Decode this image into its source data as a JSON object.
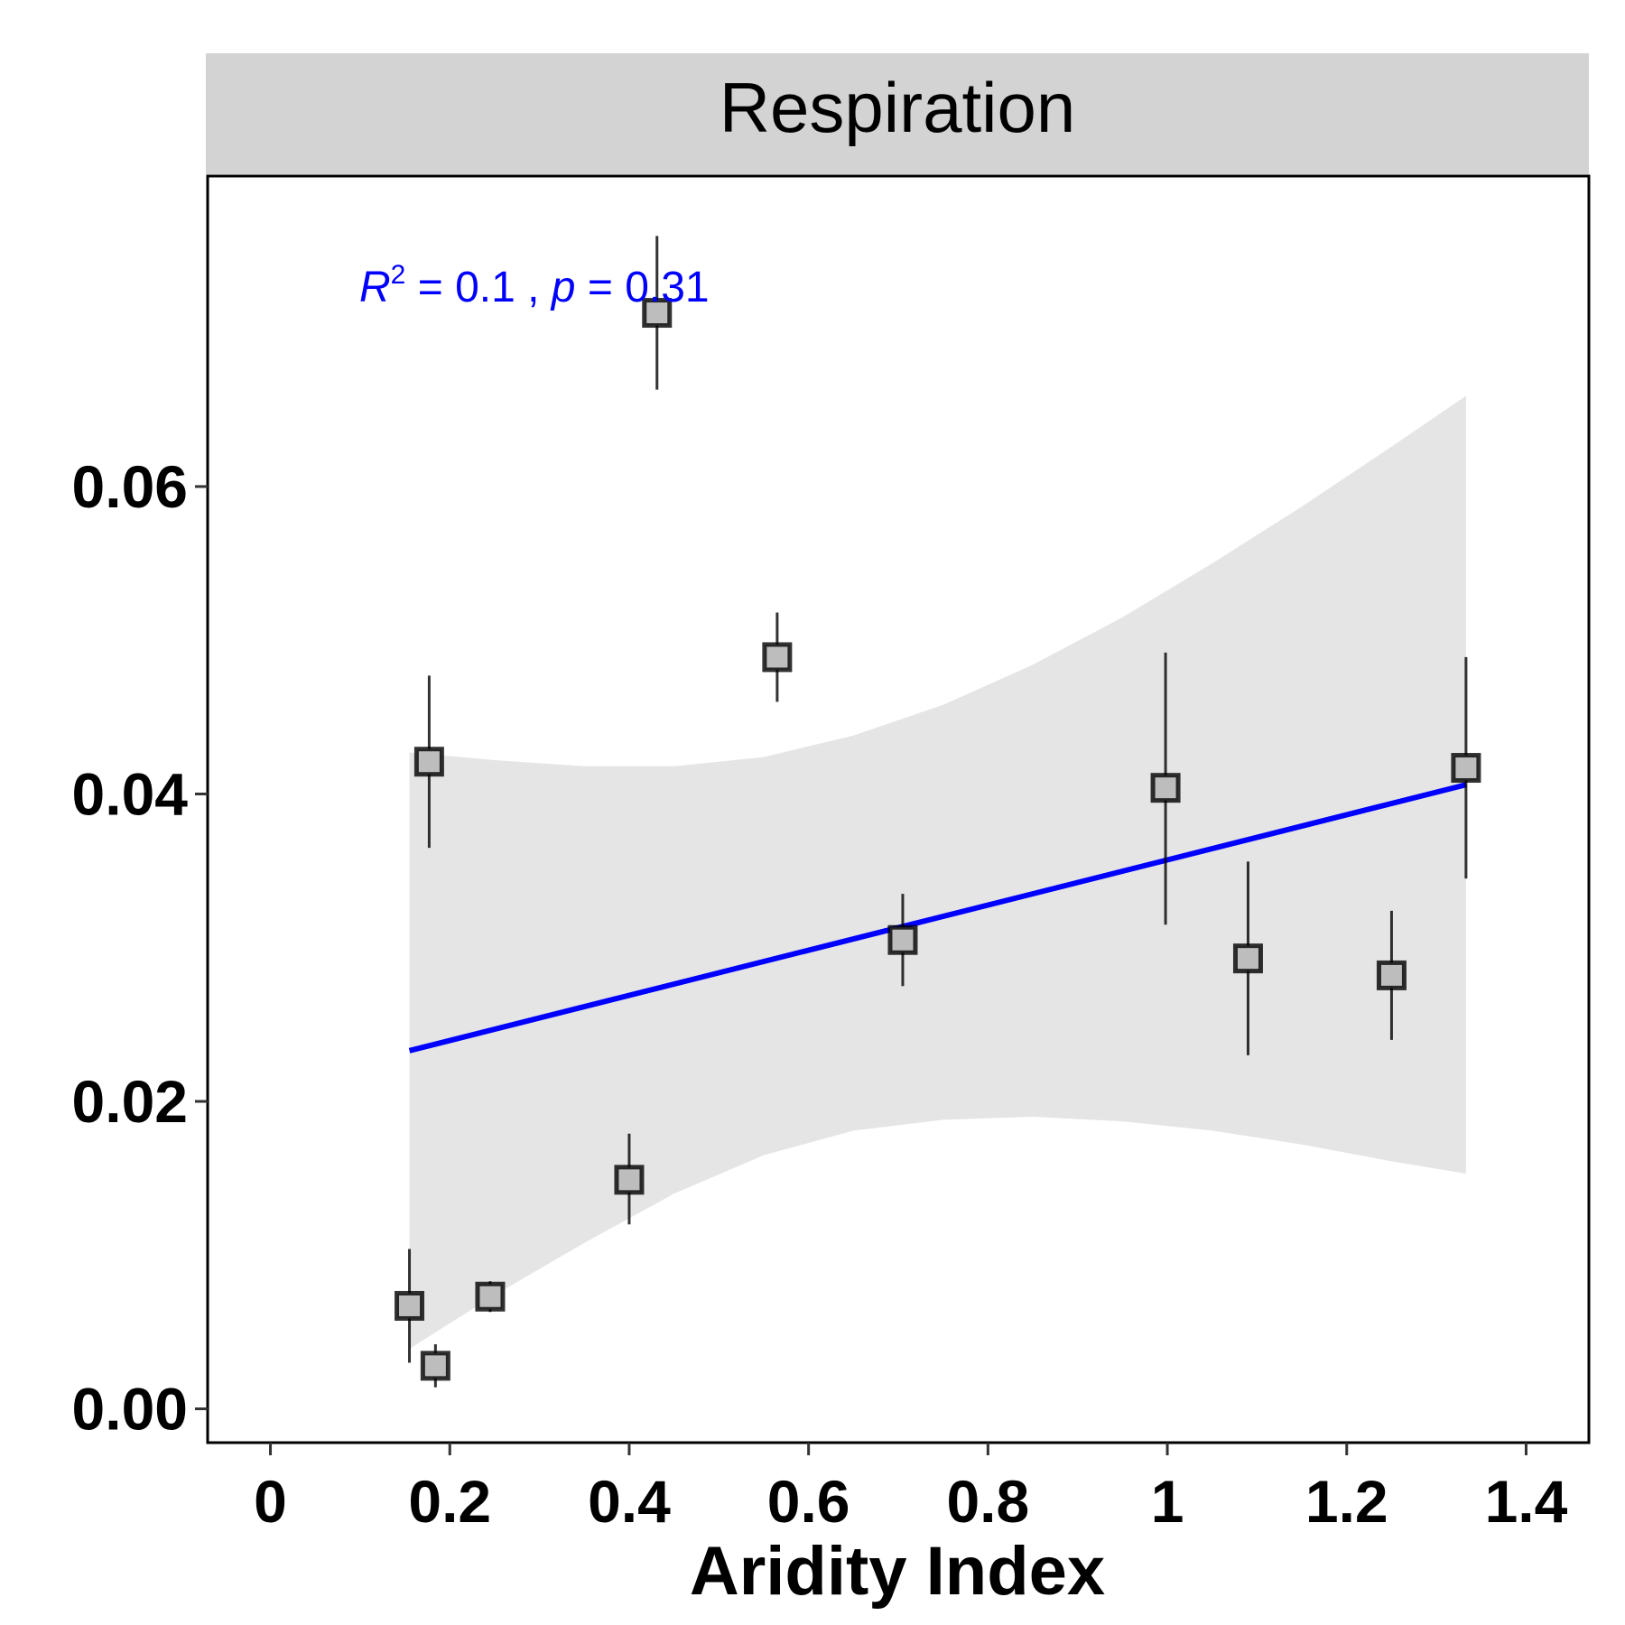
{
  "chart_data": {
    "type": "scatter",
    "panel_title": "Respiration",
    "xlabel": "Aridity Index",
    "ylabel": "",
    "xlim": [
      -0.07,
      1.47
    ],
    "ylim": [
      -0.0022,
      0.0802
    ],
    "x_ticks": [
      0,
      0.2,
      0.4,
      0.6,
      0.8,
      1,
      1.2,
      1.4
    ],
    "x_tick_labels": [
      "0",
      "0.2",
      "0.4",
      "0.6",
      "0.8",
      "1",
      "1.2",
      "1.4"
    ],
    "y_ticks": [
      0.0,
      0.02,
      0.04,
      0.06
    ],
    "y_tick_labels": [
      "0.00",
      "0.02",
      "0.04",
      "0.06"
    ],
    "grid": false,
    "points": [
      {
        "x": 0.155,
        "y": 0.0067,
        "ymin": 0.003,
        "ymax": 0.0104
      },
      {
        "x": 0.177,
        "y": 0.0421,
        "ymin": 0.0365,
        "ymax": 0.0477
      },
      {
        "x": 0.184,
        "y": 0.0028,
        "ymin": 0.0014,
        "ymax": 0.0042
      },
      {
        "x": 0.245,
        "y": 0.0073,
        "ymin": 0.0063,
        "ymax": 0.0083
      },
      {
        "x": 0.4,
        "y": 0.0149,
        "ymin": 0.012,
        "ymax": 0.0179
      },
      {
        "x": 0.431,
        "y": 0.0713,
        "ymin": 0.0663,
        "ymax": 0.0763
      },
      {
        "x": 0.565,
        "y": 0.0489,
        "ymin": 0.046,
        "ymax": 0.0518
      },
      {
        "x": 0.705,
        "y": 0.0305,
        "ymin": 0.0275,
        "ymax": 0.0335
      },
      {
        "x": 0.998,
        "y": 0.0404,
        "ymin": 0.0315,
        "ymax": 0.0492
      },
      {
        "x": 1.09,
        "y": 0.0293,
        "ymin": 0.023,
        "ymax": 0.0356
      },
      {
        "x": 1.25,
        "y": 0.0282,
        "ymin": 0.024,
        "ymax": 0.0324
      },
      {
        "x": 1.333,
        "y": 0.0417,
        "ymin": 0.0345,
        "ymax": 0.0489
      }
    ],
    "fit_line": {
      "x": [
        0.155,
        1.333
      ],
      "y": [
        0.0233,
        0.0406
      ],
      "color": "#0000ff"
    },
    "confidence_band": {
      "x": [
        0.155,
        0.25,
        0.35,
        0.45,
        0.55,
        0.65,
        0.75,
        0.85,
        0.95,
        1.05,
        1.15,
        1.25,
        1.333
      ],
      "upper": [
        0.0427,
        0.0422,
        0.0418,
        0.0418,
        0.0424,
        0.0438,
        0.0458,
        0.0484,
        0.0515,
        0.055,
        0.0587,
        0.0626,
        0.0659
      ],
      "lower": [
        0.0039,
        0.0074,
        0.0108,
        0.014,
        0.0165,
        0.0181,
        0.0188,
        0.019,
        0.0187,
        0.0181,
        0.0172,
        0.0161,
        0.0153
      ],
      "color": "#e5e5e5"
    },
    "annotation": {
      "r_symbol": "R",
      "r_superscript": "2",
      "r_value": " = 0.1 , ",
      "p_symbol": "p",
      "p_value": " = 0.31",
      "color": "#0000ff"
    },
    "colors": {
      "strip_background": "#d3d3d3",
      "point_fill": "#bdbdbd",
      "point_stroke": "#000000",
      "errorbar": "#000000"
    }
  }
}
